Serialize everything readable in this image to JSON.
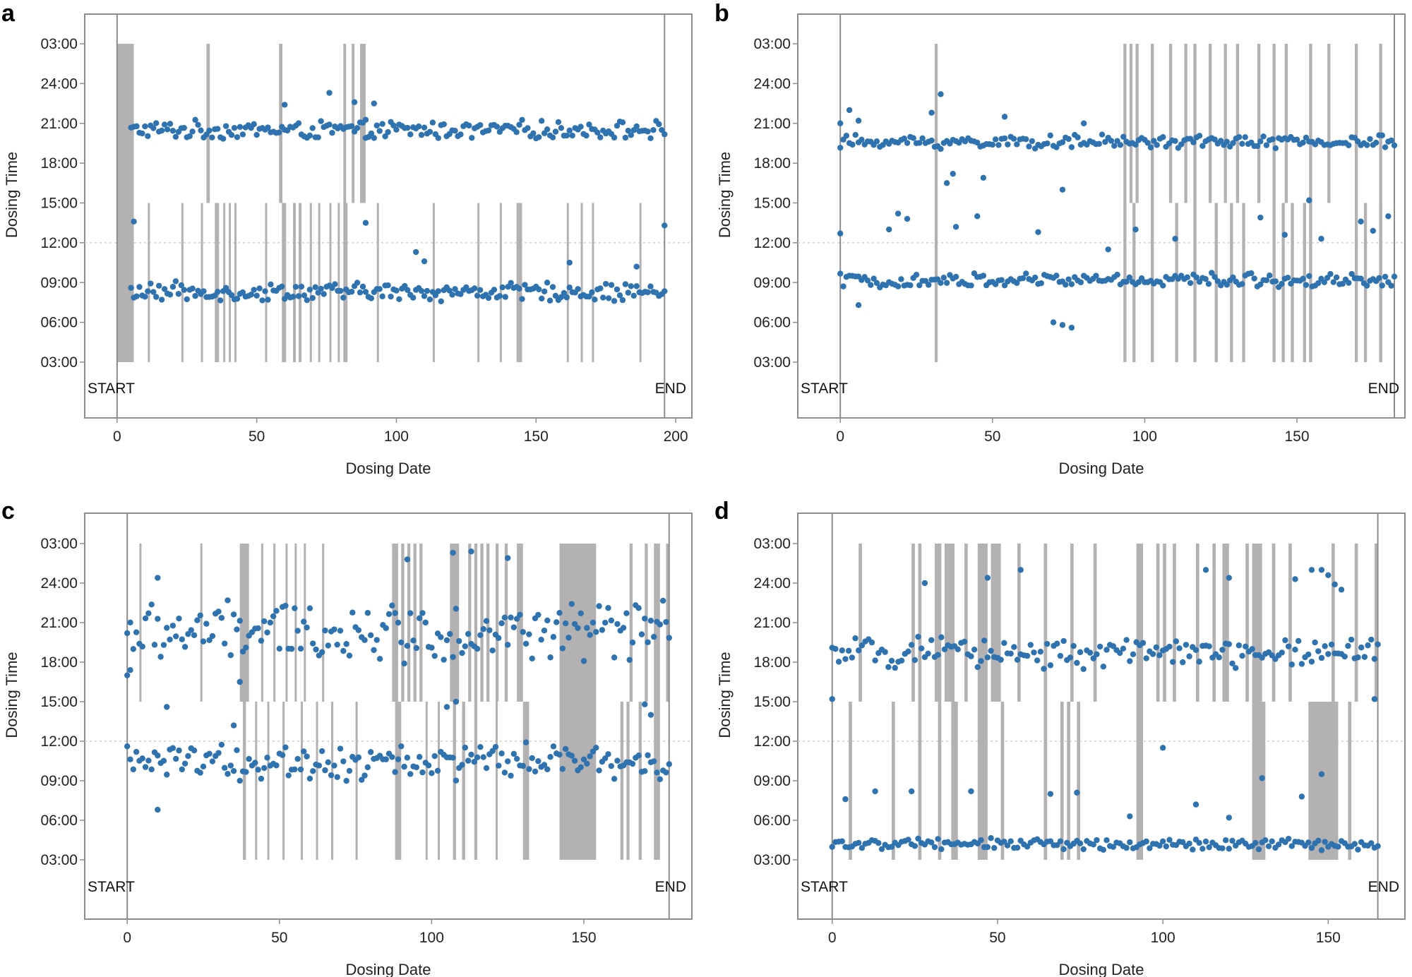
{
  "chart_data": [
    {
      "panel": "a",
      "type": "scatter",
      "xlabel": "Dosing Date",
      "ylabel": "Dosing Time",
      "xticks": [
        0,
        50,
        100,
        150,
        200
      ],
      "yticks": [
        "03:00",
        "06:00",
        "09:00",
        "12:00",
        "15:00",
        "18:00",
        "21:00",
        "24:00",
        "03:00"
      ],
      "xlim": [
        -4,
        202
      ],
      "ylim_hours": [
        3,
        27
      ],
      "reference_line_hours": 12,
      "start_label": "START",
      "end_label": "END",
      "start_x": 0,
      "end_x": 196,
      "point_color": "#2f72b0",
      "band_color": "#b3b1b1",
      "evening": {
        "start_x": 5,
        "end_x": 196,
        "base_hours": 20.5,
        "amplitude": 0.8,
        "outliers": [
          [
            60,
            22.4
          ],
          [
            76,
            23.3
          ],
          [
            85,
            22.6
          ],
          [
            92,
            22.5
          ],
          [
            89,
            19.9
          ]
        ]
      },
      "morning": {
        "start_x": 5,
        "end_x": 196,
        "base_hours": 8.3,
        "amplitude": 0.8,
        "outliers": [
          [
            6,
            13.6
          ],
          [
            89,
            13.5
          ],
          [
            196,
            13.3
          ],
          [
            107,
            11.3
          ],
          [
            110,
            10.6
          ],
          [
            162,
            10.5
          ],
          [
            186,
            10.2
          ]
        ]
      },
      "bands_full": [
        [
          0,
          6
        ]
      ],
      "bands_evening": [
        [
          32,
          33.2
        ],
        [
          58,
          59.2
        ],
        [
          81,
          82
        ],
        [
          84,
          85
        ],
        [
          87,
          89
        ]
      ],
      "bands_morning": [
        [
          11,
          11.7
        ],
        [
          23,
          23.7
        ],
        [
          30,
          30.7
        ],
        [
          35,
          36.5
        ],
        [
          38,
          38.7
        ],
        [
          40,
          40.7
        ],
        [
          42,
          42.7
        ],
        [
          53,
          53.7
        ],
        [
          59,
          60.5
        ],
        [
          63,
          64
        ],
        [
          65,
          66
        ],
        [
          69,
          69.7
        ],
        [
          72,
          72.7
        ],
        [
          76,
          76.7
        ],
        [
          79,
          79.7
        ],
        [
          81,
          82.5
        ],
        [
          93,
          93.7
        ],
        [
          113,
          113.7
        ],
        [
          129,
          129.7
        ],
        [
          137,
          137.7
        ],
        [
          143,
          145
        ],
        [
          161,
          161.7
        ],
        [
          166,
          166.7
        ],
        [
          170,
          170.7
        ],
        [
          187,
          187.7
        ]
      ]
    },
    {
      "panel": "b",
      "type": "scatter",
      "xlabel": "Dosing Date",
      "ylabel": "Dosing Time",
      "xticks": [
        0,
        50,
        100,
        150
      ],
      "yticks": [
        "03:00",
        "06:00",
        "09:00",
        "12:00",
        "15:00",
        "18:00",
        "21:00",
        "24:00",
        "03:00"
      ],
      "xlim": [
        -7,
        182
      ],
      "ylim_hours": [
        3,
        27
      ],
      "reference_line_hours": 12,
      "start_label": "START",
      "end_label": "END",
      "start_x": 0,
      "end_x": 182,
      "point_color": "#2f72b0",
      "band_color": "#b3b1b1",
      "evening": {
        "start_x": 0,
        "end_x": 182,
        "base_hours": 19.6,
        "amplitude": 0.6,
        "outliers": [
          [
            3,
            22.0
          ],
          [
            6,
            21.2
          ],
          [
            30,
            21.8
          ],
          [
            33,
            23.2
          ],
          [
            35,
            16.5
          ],
          [
            37,
            17.2
          ],
          [
            47,
            16.9
          ],
          [
            73,
            16.0
          ],
          [
            54,
            21.5
          ],
          [
            80,
            21.0
          ],
          [
            0,
            21.0
          ]
        ]
      },
      "morning": {
        "start_x": 0,
        "end_x": 182,
        "base_hours": 9.2,
        "amplitude": 0.6,
        "outliers": [
          [
            0,
            12.7
          ],
          [
            6,
            7.3
          ],
          [
            16,
            13.0
          ],
          [
            19,
            14.2
          ],
          [
            22,
            13.8
          ],
          [
            38,
            13.2
          ],
          [
            45,
            14.0
          ],
          [
            65,
            12.8
          ],
          [
            70,
            6.0
          ],
          [
            73,
            5.8
          ],
          [
            76,
            5.6
          ],
          [
            88,
            11.5
          ],
          [
            97,
            13.0
          ],
          [
            138,
            13.9
          ],
          [
            154,
            15.2
          ],
          [
            175,
            12.9
          ],
          [
            180,
            14.0
          ],
          [
            110,
            12.3
          ],
          [
            146,
            12.6
          ],
          [
            158,
            12.3
          ],
          [
            171,
            13.6
          ]
        ]
      },
      "bands_full": [
        [
          31,
          32
        ],
        [
          177,
          178
        ]
      ],
      "bands_evening": [
        [
          93,
          94
        ],
        [
          95,
          96
        ],
        [
          97,
          98
        ],
        [
          102,
          103
        ],
        [
          108,
          109
        ],
        [
          113,
          114
        ],
        [
          116,
          117
        ],
        [
          121,
          122
        ],
        [
          126,
          127
        ],
        [
          130,
          131
        ],
        [
          137,
          138
        ],
        [
          142,
          143
        ],
        [
          146,
          147
        ],
        [
          154,
          155
        ],
        [
          160,
          161
        ],
        [
          169,
          170
        ]
      ],
      "bands_morning": [
        [
          93,
          94
        ],
        [
          96,
          97
        ],
        [
          102,
          103
        ],
        [
          110,
          111
        ],
        [
          116,
          117
        ],
        [
          123,
          124
        ],
        [
          128,
          129
        ],
        [
          132,
          133
        ],
        [
          142,
          143
        ],
        [
          145,
          146
        ],
        [
          148,
          149
        ],
        [
          152,
          153
        ],
        [
          154,
          155
        ],
        [
          169,
          170
        ],
        [
          172,
          173
        ],
        [
          177,
          178
        ]
      ]
    },
    {
      "panel": "c",
      "type": "scatter",
      "xlabel": "Dosing Date",
      "ylabel": "Dosing Time",
      "xticks": [
        0,
        50,
        100,
        150
      ],
      "yticks": [
        "03:00",
        "06:00",
        "09:00",
        "12:00",
        "15:00",
        "18:00",
        "21:00",
        "24:00",
        "03:00"
      ],
      "xlim": [
        -7,
        182
      ],
      "ylim_hours": [
        3,
        27
      ],
      "reference_line_hours": 12,
      "start_label": "START",
      "end_label": "END",
      "start_x": 0,
      "end_x": 178,
      "point_color": "#2f72b0",
      "band_color": "#b3b1b1",
      "evening": {
        "start_x": 0,
        "end_x": 178,
        "base_hours": 20.3,
        "amplitude": 2.6,
        "outliers": [
          [
            0,
            17.0
          ],
          [
            1,
            17.4
          ],
          [
            10,
            24.4
          ],
          [
            92,
            25.8
          ],
          [
            107,
            26.3
          ],
          [
            113,
            26.4
          ],
          [
            125,
            25.9
          ],
          [
            37,
            16.5
          ]
        ]
      },
      "morning": {
        "start_x": 0,
        "end_x": 178,
        "base_hours": 10.4,
        "amplitude": 1.6,
        "outliers": [
          [
            10,
            6.8
          ],
          [
            13,
            14.6
          ],
          [
            35,
            13.2
          ],
          [
            105,
            14.6
          ],
          [
            108,
            15.0
          ],
          [
            170,
            14.8
          ],
          [
            172,
            14.0
          ]
        ]
      },
      "bands_full": [
        [
          142,
          154
        ]
      ],
      "bands_evening": [
        [
          4,
          4.7
        ],
        [
          24,
          24.7
        ],
        [
          37,
          40
        ],
        [
          44,
          44.7
        ],
        [
          48,
          48.7
        ],
        [
          52,
          52.7
        ],
        [
          55,
          55.7
        ],
        [
          58,
          58.7
        ],
        [
          64,
          64.7
        ],
        [
          87,
          89
        ],
        [
          90,
          91
        ],
        [
          92,
          93
        ],
        [
          94,
          95
        ],
        [
          96,
          97
        ],
        [
          106,
          109
        ],
        [
          112,
          113
        ],
        [
          114,
          115
        ],
        [
          116,
          117
        ],
        [
          118,
          119
        ],
        [
          121,
          122
        ],
        [
          124,
          125
        ],
        [
          128,
          130
        ],
        [
          165,
          166
        ],
        [
          170,
          171
        ],
        [
          173,
          175
        ],
        [
          177,
          178
        ]
      ],
      "bands_morning": [
        [
          38,
          39
        ],
        [
          42,
          42.7
        ],
        [
          46,
          46.7
        ],
        [
          51,
          51.7
        ],
        [
          57,
          57.7
        ],
        [
          62,
          62.7
        ],
        [
          67,
          67.7
        ],
        [
          75,
          75.7
        ],
        [
          88,
          90
        ],
        [
          98,
          98.7
        ],
        [
          102,
          102.7
        ],
        [
          107,
          108
        ],
        [
          110,
          111
        ],
        [
          114,
          115
        ],
        [
          121,
          121.7
        ],
        [
          130,
          132
        ],
        [
          162,
          163
        ],
        [
          164,
          165
        ],
        [
          168,
          169
        ],
        [
          173,
          175
        ]
      ]
    },
    {
      "panel": "d",
      "type": "scatter",
      "xlabel": "Dosing Date",
      "ylabel": "Dosing Time",
      "xticks": [
        0,
        50,
        100,
        150
      ],
      "yticks": [
        "03:00",
        "06:00",
        "09:00",
        "12:00",
        "15:00",
        "18:00",
        "21:00",
        "24:00",
        "03:00"
      ],
      "xlim": [
        -4,
        170
      ],
      "ylim_hours": [
        3,
        27
      ],
      "reference_line_hours": 12,
      "start_label": "START",
      "end_label": "END",
      "start_x": 0,
      "end_x": 165,
      "point_color": "#2f72b0",
      "band_color": "#b3b1b1",
      "evening": {
        "start_x": 0,
        "end_x": 165,
        "base_hours": 18.7,
        "amplitude": 1.3,
        "outliers": [
          [
            0,
            15.2
          ],
          [
            28,
            24.0
          ],
          [
            47,
            24.4
          ],
          [
            57,
            25.0
          ],
          [
            113,
            25.0
          ],
          [
            120,
            24.4
          ],
          [
            140,
            24.3
          ],
          [
            145,
            25.0
          ],
          [
            148,
            25.0
          ],
          [
            150,
            24.6
          ],
          [
            152,
            23.9
          ],
          [
            154,
            23.5
          ],
          [
            164,
            15.2
          ]
        ]
      },
      "morning": {
        "start_x": 0,
        "end_x": 165,
        "base_hours": 4.2,
        "amplitude": 0.5,
        "outliers": [
          [
            4,
            7.6
          ],
          [
            13,
            8.2
          ],
          [
            24,
            8.2
          ],
          [
            42,
            8.2
          ],
          [
            66,
            8.0
          ],
          [
            74,
            8.1
          ],
          [
            100,
            11.5
          ],
          [
            110,
            7.2
          ],
          [
            120,
            6.2
          ],
          [
            130,
            9.2
          ],
          [
            142,
            7.8
          ],
          [
            148,
            9.5
          ],
          [
            90,
            6.3
          ]
        ]
      },
      "bands_full": [
        [
          26,
          27
        ],
        [
          127,
          130
        ]
      ],
      "bands_evening": [
        [
          8,
          9
        ],
        [
          24,
          25
        ],
        [
          31,
          33
        ],
        [
          34,
          37
        ],
        [
          40,
          41
        ],
        [
          44,
          47
        ],
        [
          48,
          51
        ],
        [
          56,
          57
        ],
        [
          64,
          65
        ],
        [
          72,
          73
        ],
        [
          79,
          80
        ],
        [
          92,
          94
        ],
        [
          98,
          99
        ],
        [
          100,
          101
        ],
        [
          103,
          104
        ],
        [
          110,
          111
        ],
        [
          115,
          116
        ],
        [
          118,
          120
        ],
        [
          125,
          126
        ],
        [
          133,
          134
        ],
        [
          138,
          139
        ],
        [
          151,
          152
        ],
        [
          158,
          159
        ],
        [
          164,
          165
        ]
      ],
      "bands_evening_gap": [
        [
          145,
          153
        ]
      ],
      "bands_morning": [
        [
          5,
          6
        ],
        [
          18,
          19
        ],
        [
          32,
          33
        ],
        [
          36,
          38
        ],
        [
          44,
          47
        ],
        [
          51,
          52
        ],
        [
          64,
          65
        ],
        [
          69,
          70
        ],
        [
          71,
          72
        ],
        [
          74,
          75
        ],
        [
          92,
          94
        ],
        [
          128,
          131
        ],
        [
          144,
          148
        ],
        [
          149,
          153
        ],
        [
          156,
          157
        ]
      ]
    }
  ]
}
